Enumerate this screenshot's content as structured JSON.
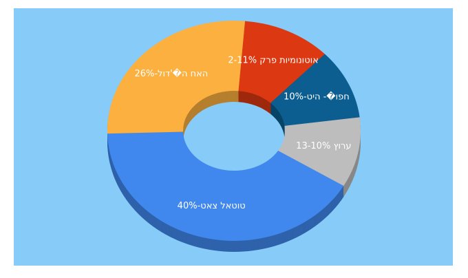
{
  "chart_data": {
    "type": "donut3d",
    "labels": [
      "אוטונומיות פרק 2-11%",
      "חפו�- היט-10%",
      "ערוץ 13-10%",
      "טוטאל צאט-40%",
      "האח ה�'דול-26%"
    ],
    "values": [
      11,
      10,
      10,
      40,
      26
    ],
    "colors": [
      "#dc3912",
      "#0b5e8f",
      "#bdbdbd",
      "#4088ee",
      "#fbb040"
    ]
  }
}
